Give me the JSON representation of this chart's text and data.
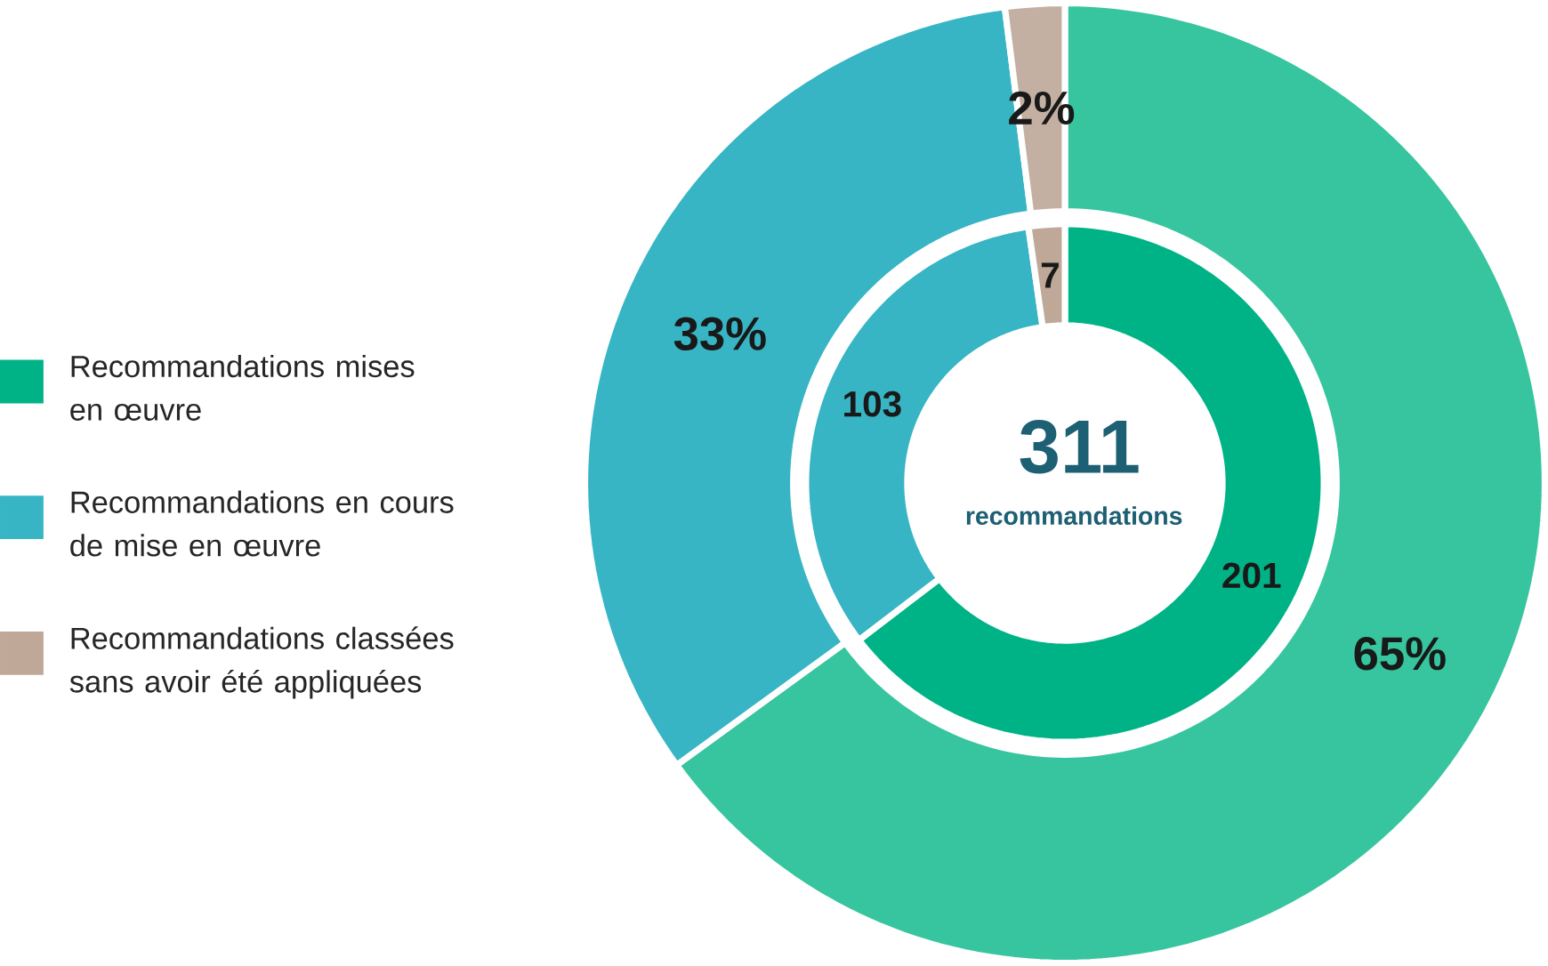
{
  "chart_data": {
    "type": "donut",
    "legend": "left",
    "categories": [
      "Recommandations mises en œuvre",
      "Recommandations en cours de mise en œuvre",
      "Recommandations classées sans avoir été appliquées"
    ],
    "series": [
      {
        "values": [
          201,
          103,
          7
        ],
        "colors": [
          "#00b386",
          "#37b5c4",
          "#bfa898"
        ],
        "value_labels": [
          "201",
          "103",
          "7"
        ]
      },
      {
        "values": [
          65,
          33,
          2
        ],
        "colors": [
          "#36c59e",
          "#37b5c4",
          "#c3b0a2"
        ],
        "value_labels": [
          "65%",
          "33%",
          "2%"
        ]
      }
    ],
    "annotations": [
      "311",
      "recommandations"
    ]
  }
}
